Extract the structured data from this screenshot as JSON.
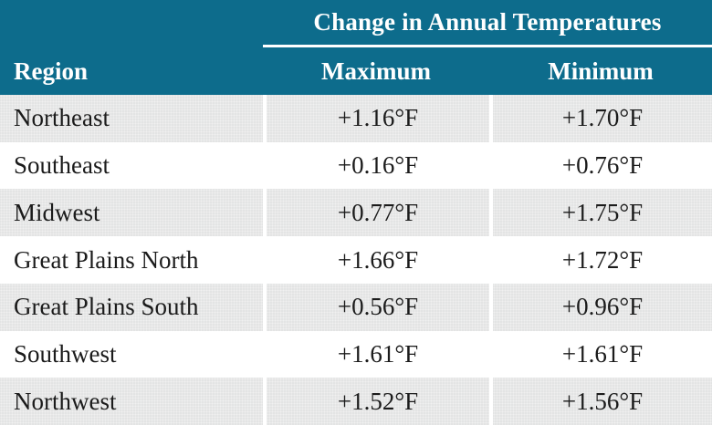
{
  "chart_data": {
    "type": "table",
    "title": "Change in Annual Temperatures",
    "columns": [
      "Region",
      "Maximum",
      "Minimum"
    ],
    "rows": [
      [
        "Northeast",
        "+1.16°F",
        "+1.70°F"
      ],
      [
        "Southeast",
        "+0.16°F",
        "+0.76°F"
      ],
      [
        "Midwest",
        "+0.77°F",
        "+1.75°F"
      ],
      [
        "Great Plains North",
        "+1.66°F",
        "+1.72°F"
      ],
      [
        "Great Plains South",
        "+0.56°F",
        "+0.96°F"
      ],
      [
        "Southwest",
        "+1.61°F",
        "+1.61°F"
      ],
      [
        "Northwest",
        "+1.52°F",
        "+1.56°F"
      ]
    ],
    "layout": {
      "row_striping": [
        "gray",
        "white"
      ],
      "legend_position": "none",
      "grid": "column-separators"
    }
  },
  "colors": {
    "header_teal": "#0d6c8c",
    "header_text": "#ffffff",
    "row_gray": "#e3e4e4",
    "row_white": "#ffffff",
    "body_text": "#1b1b1b",
    "separator_white": "#ffffff"
  }
}
